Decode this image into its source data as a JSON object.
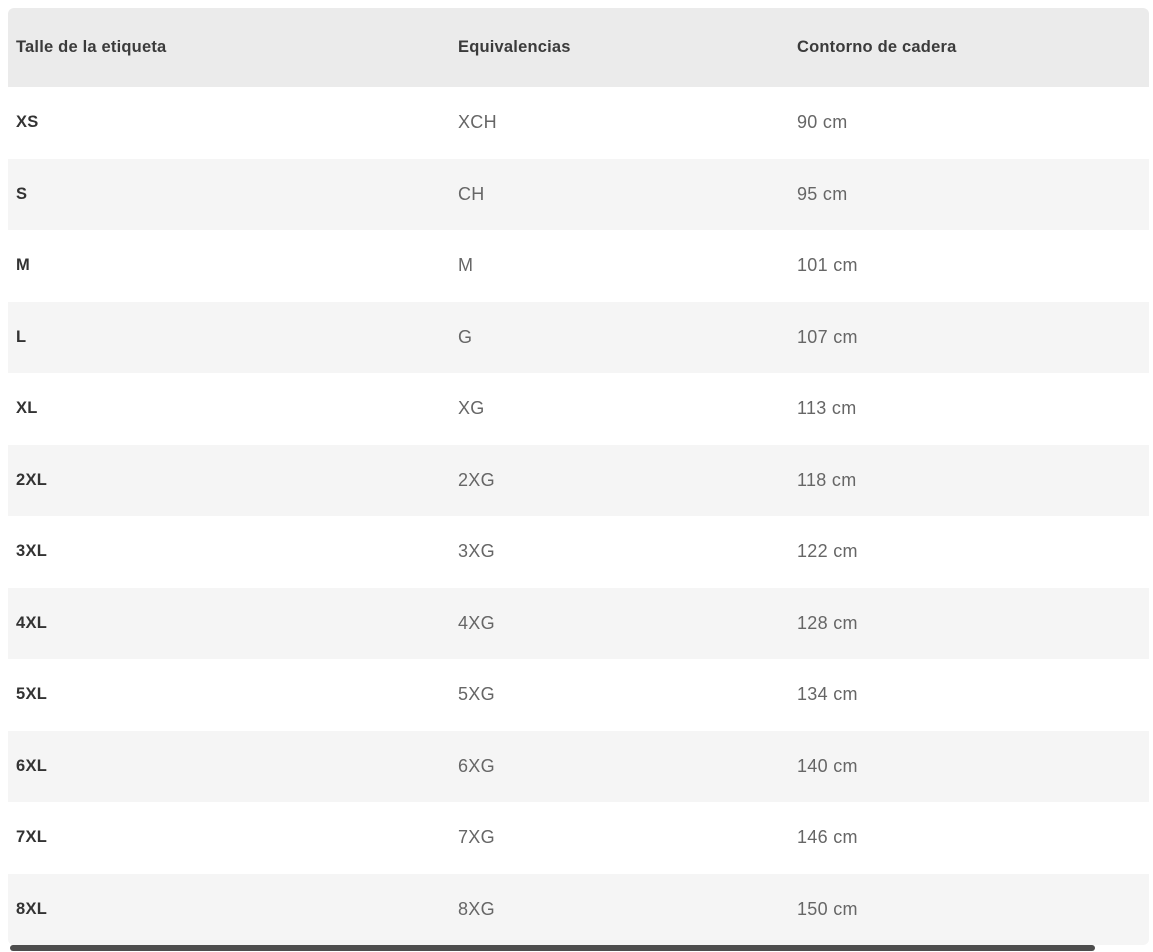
{
  "table": {
    "columns": [
      {
        "key": "size",
        "label": "Talle de la etiqueta"
      },
      {
        "key": "equiv",
        "label": "Equivalencias"
      },
      {
        "key": "hip",
        "label": "Contorno de cadera"
      }
    ],
    "rows": [
      {
        "size": "XS",
        "equiv": "XCH",
        "hip": "90 cm"
      },
      {
        "size": "S",
        "equiv": "CH",
        "hip": "95 cm"
      },
      {
        "size": "M",
        "equiv": "M",
        "hip": "101 cm"
      },
      {
        "size": "L",
        "equiv": "G",
        "hip": "107 cm"
      },
      {
        "size": "XL",
        "equiv": "XG",
        "hip": "113 cm"
      },
      {
        "size": "2XL",
        "equiv": "2XG",
        "hip": "118 cm"
      },
      {
        "size": "3XL",
        "equiv": "3XG",
        "hip": "122 cm"
      },
      {
        "size": "4XL",
        "equiv": "4XG",
        "hip": "128 cm"
      },
      {
        "size": "5XL",
        "equiv": "5XG",
        "hip": "134 cm"
      },
      {
        "size": "6XL",
        "equiv": "6XG",
        "hip": "140 cm"
      },
      {
        "size": "7XL",
        "equiv": "7XG",
        "hip": "146 cm"
      },
      {
        "size": "8XL",
        "equiv": "8XG",
        "hip": "150 cm"
      }
    ]
  },
  "colors": {
    "header_bg": "#ebebeb",
    "zebra_bg": "#f5f5f5",
    "row_bg": "#ffffff",
    "header_text": "#3b3b3b",
    "size_text": "#333333",
    "value_text": "#666666",
    "scrollbar_thumb": "#4d4d4d"
  }
}
